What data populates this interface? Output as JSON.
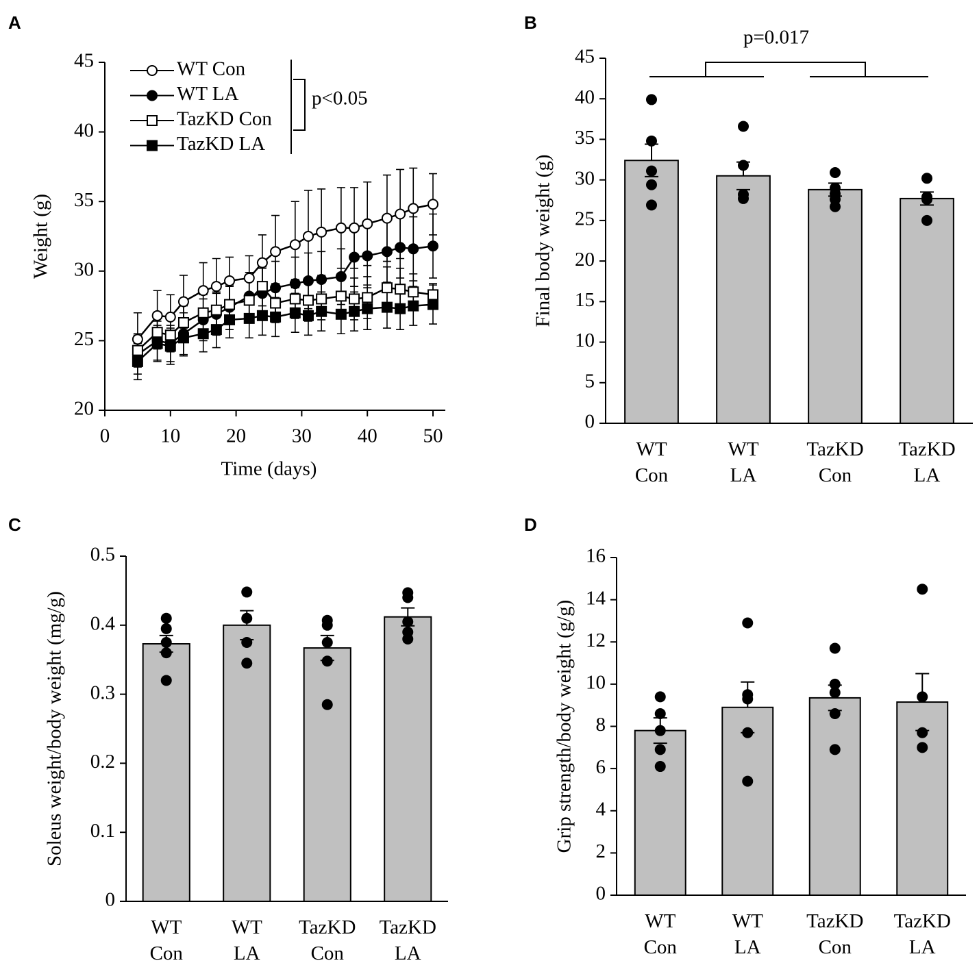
{
  "chart_data": [
    {
      "type": "line",
      "panel_label": "A",
      "xlabel": "Time (days)",
      "ylabel": "Weight (g)",
      "annotation": "p<0.05",
      "x": [
        5,
        8,
        10,
        12,
        15,
        17,
        19,
        22,
        24,
        26,
        29,
        31,
        33,
        36,
        38,
        40,
        43,
        45,
        47,
        50
      ],
      "xlim": [
        0,
        50
      ],
      "xticks": [
        0,
        10,
        20,
        30,
        40,
        50
      ],
      "ylim": [
        20,
        45
      ],
      "yticks": [
        20,
        25,
        30,
        35,
        40,
        45
      ],
      "legend": "upper left",
      "series": [
        {
          "name": "WT Con",
          "color": "#000000",
          "marker": "circle",
          "marker_fill": "#ffffff",
          "values": [
            25.1,
            26.8,
            26.7,
            27.8,
            28.6,
            28.9,
            29.3,
            29.5,
            30.6,
            31.4,
            31.9,
            32.5,
            32.8,
            33.1,
            33.1,
            33.4,
            33.8,
            34.1,
            34.5,
            34.8
          ],
          "errors": [
            1.9,
            1.8,
            1.6,
            1.9,
            2.0,
            2.0,
            1.7,
            1.6,
            2.0,
            2.6,
            3.1,
            3.3,
            3.1,
            2.9,
            2.9,
            3.0,
            3.1,
            3.2,
            2.9,
            2.2
          ]
        },
        {
          "name": "WT LA",
          "color": "#000000",
          "marker": "circle",
          "marker_fill": "#000000",
          "values": [
            24.0,
            25.0,
            24.8,
            25.5,
            26.5,
            26.9,
            27.4,
            28.2,
            28.4,
            28.8,
            29.1,
            29.3,
            29.4,
            29.6,
            31.0,
            31.1,
            31.4,
            31.7,
            31.6,
            31.8
          ],
          "errors": [
            1.4,
            1.4,
            1.3,
            1.5,
            1.5,
            1.5,
            1.6,
            1.7,
            1.8,
            1.9,
            1.9,
            2.0,
            2.0,
            2.0,
            2.1,
            2.1,
            2.2,
            2.2,
            2.3,
            2.3
          ]
        },
        {
          "name": "TazKD Con",
          "color": "#000000",
          "marker": "square",
          "marker_fill": "#ffffff",
          "values": [
            24.3,
            25.6,
            25.4,
            26.3,
            27.0,
            27.2,
            27.6,
            27.9,
            28.9,
            27.7,
            28.0,
            27.9,
            28.0,
            28.2,
            28.0,
            28.1,
            28.8,
            28.7,
            28.5,
            28.3
          ],
          "errors": [
            1.2,
            1.2,
            1.2,
            1.2,
            1.3,
            1.3,
            1.3,
            1.4,
            1.4,
            1.4,
            1.4,
            1.5,
            1.5,
            1.5,
            1.5,
            1.5,
            1.5,
            1.5,
            1.3,
            0.8
          ]
        },
        {
          "name": "TazKD LA",
          "color": "#000000",
          "marker": "square",
          "marker_fill": "#000000",
          "values": [
            23.5,
            24.8,
            24.6,
            25.2,
            25.5,
            25.8,
            26.5,
            26.6,
            26.8,
            26.7,
            27.0,
            26.8,
            27.1,
            26.9,
            27.1,
            27.3,
            27.4,
            27.3,
            27.5,
            27.6
          ],
          "errors": [
            1.3,
            1.3,
            1.3,
            1.3,
            1.3,
            1.3,
            1.3,
            1.4,
            1.4,
            1.4,
            1.4,
            1.4,
            1.4,
            1.4,
            1.4,
            1.5,
            1.5,
            1.5,
            1.4,
            1.4
          ]
        }
      ]
    },
    {
      "type": "bar",
      "panel_label": "B",
      "ylabel": "Final body weight (g)",
      "annotation": "p=0.017",
      "categories": [
        "WT Con",
        "WT LA",
        "TazKD Con",
        "TazKD LA"
      ],
      "color": "#c0c0c0",
      "values": [
        32.4,
        30.5,
        28.8,
        27.7
      ],
      "errors": [
        2.0,
        1.7,
        0.8,
        0.8
      ],
      "points": [
        [
          39.9,
          34.8,
          31.1,
          29.4,
          26.9
        ],
        [
          36.6,
          31.8,
          28.2,
          27.7
        ],
        [
          30.9,
          29.0,
          28.3,
          27.6,
          26.7
        ],
        [
          30.2,
          27.9,
          27.6,
          25.0
        ]
      ],
      "ylim": [
        0,
        45
      ],
      "yticks": [
        0,
        5,
        10,
        15,
        20,
        25,
        30,
        35,
        40,
        45
      ]
    },
    {
      "type": "bar",
      "panel_label": "C",
      "ylabel": "Soleus weight/body weight (mg/g)",
      "categories": [
        "WT Con",
        "WT LA",
        "TazKD Con",
        "TazKD LA"
      ],
      "color": "#c0c0c0",
      "values": [
        0.373,
        0.4,
        0.367,
        0.412
      ],
      "errors": [
        0.012,
        0.021,
        0.018,
        0.013
      ],
      "points": [
        [
          0.41,
          0.395,
          0.375,
          0.36,
          0.32
        ],
        [
          0.448,
          0.41,
          0.375,
          0.345
        ],
        [
          0.407,
          0.4,
          0.375,
          0.348,
          0.285
        ],
        [
          0.447,
          0.44,
          0.405,
          0.39,
          0.38
        ]
      ],
      "ylim": [
        0,
        0.5
      ],
      "yticks": [
        0,
        0.1,
        0.2,
        0.3,
        0.4,
        0.5
      ]
    },
    {
      "type": "bar",
      "panel_label": "D",
      "ylabel": "Grip strength/body weight (g/g)",
      "categories": [
        "WT Con",
        "WT LA",
        "TazKD Con",
        "TazKD LA"
      ],
      "color": "#c0c0c0",
      "values": [
        7.8,
        8.9,
        9.35,
        9.15
      ],
      "errors": [
        0.6,
        1.2,
        0.6,
        1.35
      ],
      "points": [
        [
          9.4,
          8.6,
          7.8,
          6.9,
          6.1
        ],
        [
          12.9,
          9.5,
          9.3,
          7.7,
          5.4
        ],
        [
          11.7,
          10.0,
          9.6,
          8.6,
          6.9
        ],
        [
          14.5,
          9.4,
          7.7,
          7.0
        ]
      ],
      "ylim": [
        0,
        16
      ],
      "yticks": [
        0,
        2,
        4,
        6,
        8,
        10,
        12,
        14,
        16
      ]
    }
  ]
}
